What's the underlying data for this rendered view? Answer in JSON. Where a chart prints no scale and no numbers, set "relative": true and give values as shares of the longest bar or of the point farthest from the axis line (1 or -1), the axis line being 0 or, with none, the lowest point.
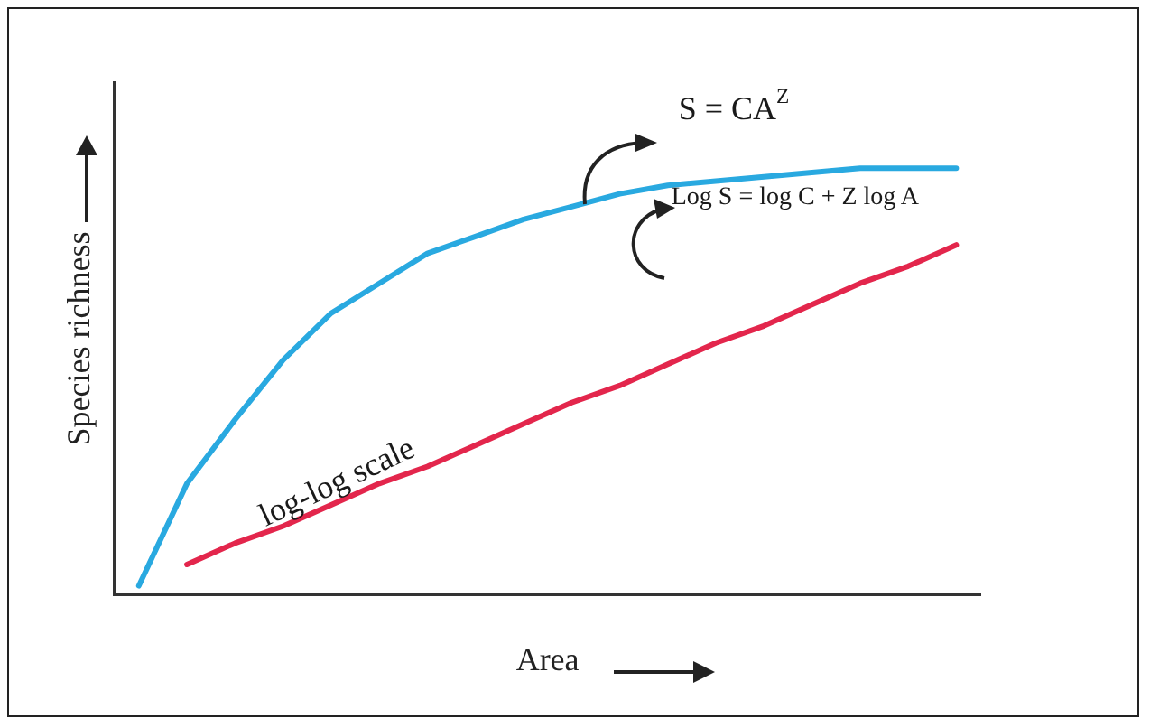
{
  "chart_data": {
    "type": "line",
    "relative": true,
    "xlabel": "Area",
    "ylabel": "Species richness",
    "categories": [
      null,
      null,
      null,
      null,
      null,
      null,
      null,
      null,
      null,
      null,
      null,
      null,
      null,
      null,
      null,
      null,
      null,
      null
    ],
    "series": [
      {
        "color": "#29a9e0",
        "values": [
          0.02,
          0.26,
          0.41,
          0.55,
          0.66,
          0.73,
          0.8,
          0.84,
          0.88,
          0.91,
          0.94,
          0.96,
          0.97,
          0.98,
          0.99,
          1,
          1,
          1
        ]
      },
      {
        "color": "#e3264c",
        "values": [
          null,
          0.07,
          0.12,
          0.16,
          0.21,
          0.26,
          0.3,
          0.35,
          0.4,
          0.45,
          0.49,
          0.54,
          0.59,
          0.63,
          0.68,
          0.73,
          0.77,
          0.82
        ]
      }
    ],
    "annotations": [
      "S = CA$^{Z}$",
      "Log S = log C + Z log A",
      "log-log scale"
    ],
    "grid": false,
    "legend": false,
    "marker": "none",
    "line_style": "solid"
  }
}
